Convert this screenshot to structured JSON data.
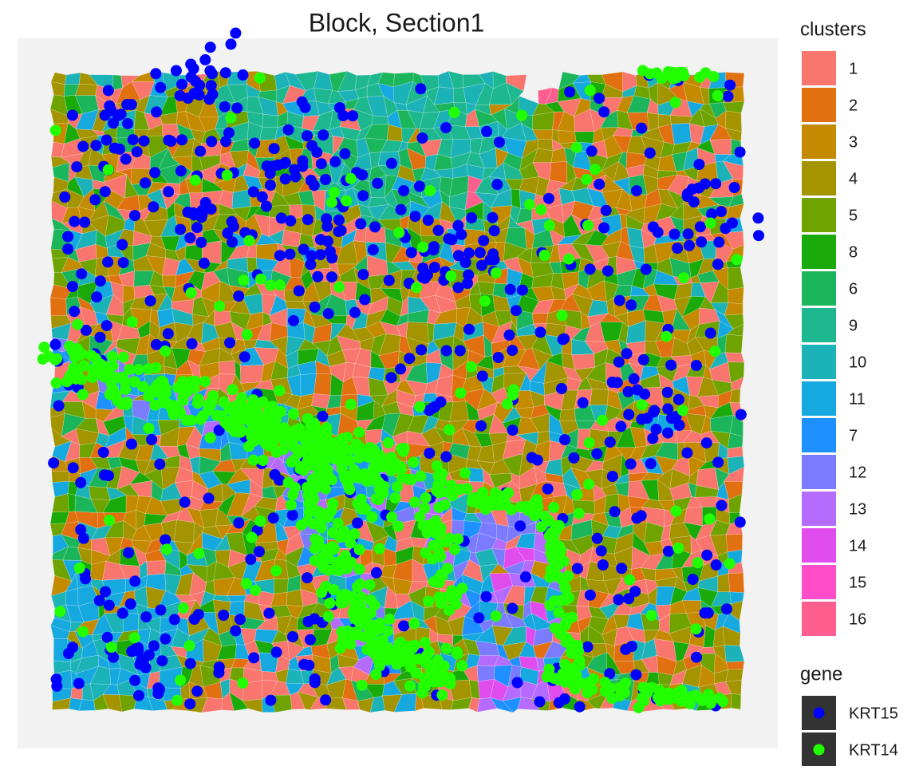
{
  "chart_data": {
    "type": "spatial",
    "title": "Block, Section1",
    "legends": [
      {
        "title": "clusters",
        "labels": [
          "1",
          "2",
          "3",
          "4",
          "5",
          "8",
          "6",
          "9",
          "10",
          "11",
          "7",
          "12",
          "13",
          "14",
          "15",
          "16"
        ],
        "colors": [
          "#F8766D",
          "#E07010",
          "#C48A00",
          "#A39400",
          "#6FA300",
          "#1AAB0B",
          "#1BB55C",
          "#1DB88F",
          "#1CB3B8",
          "#16A9E0",
          "#1E90FF",
          "#7B7BFF",
          "#B66BFF",
          "#E14CEF",
          "#FF4CC8",
          "#FF5F8E"
        ]
      },
      {
        "title": "gene",
        "labels": [
          "KRT15",
          "KRT14"
        ],
        "colors": [
          "#0000FF",
          "#22FF00"
        ]
      }
    ]
  }
}
